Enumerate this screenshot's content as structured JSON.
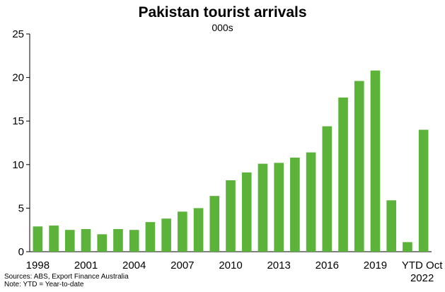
{
  "chart_data": {
    "type": "bar",
    "title": "Pakistan tourist arrivals",
    "subtitle": "000s",
    "categories": [
      "1998",
      "1999",
      "2000",
      "2001",
      "2002",
      "2003",
      "2004",
      "2005",
      "2006",
      "2007",
      "2008",
      "2009",
      "2010",
      "2011",
      "2012",
      "2013",
      "2014",
      "2015",
      "2016",
      "2017",
      "2018",
      "2019",
      "2020",
      "2021",
      "YTD Oct 2022"
    ],
    "values": [
      2.9,
      3.0,
      2.5,
      2.6,
      2.0,
      2.6,
      2.5,
      3.4,
      3.8,
      4.6,
      5.0,
      6.4,
      8.2,
      9.1,
      10.1,
      10.2,
      10.8,
      11.4,
      14.4,
      17.7,
      19.6,
      20.8,
      5.9,
      1.1,
      14.0
    ],
    "x_tick_labels": [
      "1998",
      "2001",
      "2004",
      "2007",
      "2010",
      "2013",
      "2016",
      "2019",
      "YTD Oct 2022"
    ],
    "y_ticks": [
      0,
      5,
      10,
      15,
      20,
      25
    ],
    "ylim": [
      0,
      25
    ],
    "bar_color": "#5bb33a",
    "grid": false,
    "legend": "none"
  },
  "footer": {
    "sources": "Sources: ABS, Export Finance Australia",
    "note": "Note: YTD = Year-to-date"
  }
}
